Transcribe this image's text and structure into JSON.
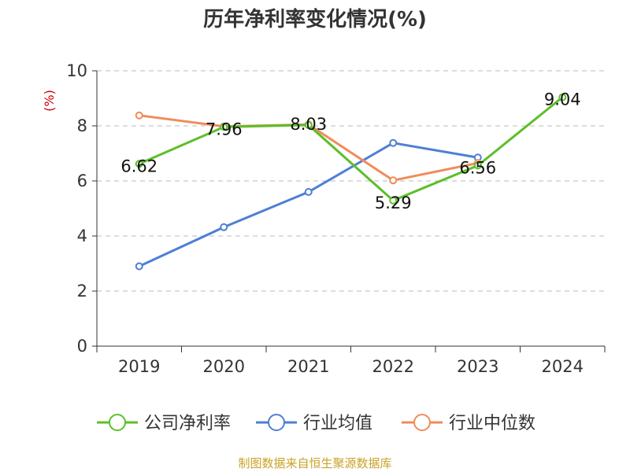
{
  "title": "历年净利率变化情况(%)",
  "source": "制图数据来自恒生聚源数据库",
  "chart_data": {
    "type": "line",
    "title": "历年净利率变化情况(%)",
    "ylabel": "(%)",
    "xlabel": "",
    "categories": [
      "2019",
      "2020",
      "2021",
      "2022",
      "2023",
      "2024"
    ],
    "ylim": [
      0,
      10
    ],
    "yticks": [
      0,
      2,
      4,
      6,
      8,
      10
    ],
    "grid": true,
    "legend_position": "bottom",
    "series": [
      {
        "name": "公司净利率",
        "color": "#5cbf2a",
        "values": [
          6.62,
          7.96,
          8.03,
          5.29,
          6.56,
          9.04
        ],
        "labels": [
          "6.62",
          "7.96",
          "8.03",
          "5.29",
          "6.56",
          "9.04"
        ]
      },
      {
        "name": "行业均值",
        "color": "#4e7fd6",
        "values": [
          2.9,
          4.32,
          5.6,
          7.38,
          6.85,
          null
        ]
      },
      {
        "name": "行业中位数",
        "color": "#f08c5a",
        "values": [
          8.38,
          7.98,
          8.05,
          6.02,
          6.65,
          null
        ]
      }
    ]
  }
}
